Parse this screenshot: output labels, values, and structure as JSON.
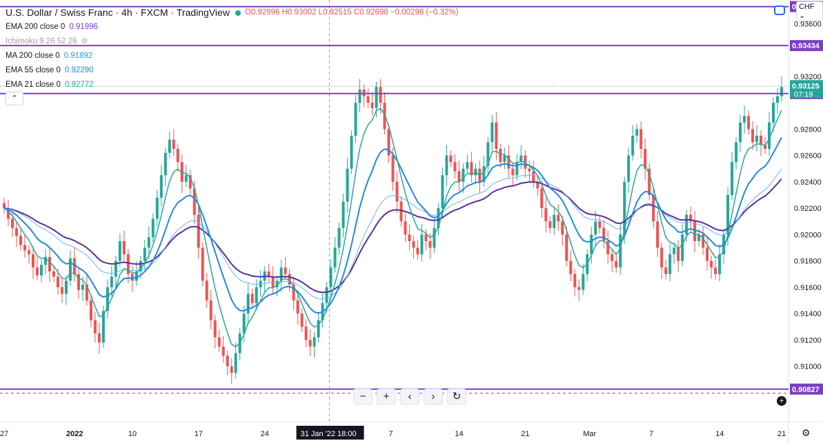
{
  "header": {
    "title": "U.S. Dollar / Swiss Franc · 4h · FXCM · TradingView",
    "ohlc": "O0.92996 H0.93002 L0.92515 C0.92698 −0.00298 (−0.32%)"
  },
  "indicators": [
    {
      "label": "EMA 200 close 0",
      "value": "0.91996",
      "color": "#7b3fc4"
    },
    {
      "label": "Ichimoku 9 26 52 26",
      "value": "",
      "color": "#9aa0ab"
    },
    {
      "label": "MA 200 close 0",
      "value": "0.91892",
      "color": "#2196f3"
    },
    {
      "label": "EMA 55 close 0",
      "value": "0.92290",
      "color": "#1e88e5"
    },
    {
      "label": "EMA 21 close 0",
      "value": "0.92772",
      "color": "#26a69a"
    }
  ],
  "currency": "CHF",
  "toolbar": {
    "zoom_out": "−",
    "zoom_in": "+",
    "scroll_left": "‹",
    "scroll_right": "›",
    "reset": "↻"
  },
  "crosshair_label": "31 Jan '22   18:00",
  "chart_data": {
    "type": "candlestick",
    "title": "U.S. Dollar / Swiss Franc · 4h · FXCM · TradingView",
    "ylim": [
      0.9058,
      0.9378
    ],
    "y_ticks": [
      "0.93600",
      "0.93200",
      "0.92800",
      "0.92600",
      "0.92400",
      "0.92200",
      "0.92000",
      "0.91800",
      "0.91600",
      "0.91400",
      "0.91200",
      "0.91000"
    ],
    "x_ticks": [
      "27",
      "2022",
      "10",
      "17",
      "24",
      "31 Jan '22",
      "7",
      "14",
      "21",
      "Mar",
      "7",
      "14",
      "21"
    ],
    "horizontal_levels": [
      {
        "label": "0.93434",
        "value": 0.93434
      },
      {
        "label": "0.93070",
        "value": 0.9307
      },
      {
        "label": "0.90827",
        "value": 0.90827
      },
      {
        "label": "0.93730",
        "value": 0.9373
      }
    ],
    "last_price": {
      "label": "0.93125",
      "countdown": "07:19",
      "value": 0.93125
    },
    "colors": {
      "up": "#26a69a",
      "down": "#ef5350",
      "level": "#7b3fc4",
      "ema200": "#5b2c9c",
      "ma200": "#64b5f6",
      "ema55": "#1e88e5",
      "ema21": "#26a69a"
    },
    "close_path": [
      0.922,
      0.9212,
      0.9205,
      0.9199,
      0.9192,
      0.9188,
      0.9185,
      0.9175,
      0.9169,
      0.9177,
      0.9183,
      0.9172,
      0.9168,
      0.916,
      0.9155,
      0.9165,
      0.9182,
      0.917,
      0.9158,
      0.9162,
      0.915,
      0.9135,
      0.9125,
      0.9118,
      0.9142,
      0.916,
      0.9168,
      0.918,
      0.9195,
      0.9185,
      0.917,
      0.9165,
      0.9172,
      0.918,
      0.919,
      0.9198,
      0.9212,
      0.9228,
      0.9245,
      0.9262,
      0.9272,
      0.9265,
      0.9255,
      0.924,
      0.9245,
      0.9235,
      0.9215,
      0.919,
      0.9165,
      0.915,
      0.9135,
      0.9122,
      0.9115,
      0.9108,
      0.91,
      0.9095,
      0.911,
      0.9125,
      0.914,
      0.9155,
      0.9148,
      0.916,
      0.9165,
      0.9172,
      0.9168,
      0.916,
      0.9165,
      0.9175,
      0.917,
      0.9162,
      0.915,
      0.914,
      0.913,
      0.912,
      0.9115,
      0.9122,
      0.9135,
      0.9148,
      0.916,
      0.9175,
      0.919,
      0.9205,
      0.9225,
      0.925,
      0.9275,
      0.93,
      0.931,
      0.9305,
      0.93,
      0.9296,
      0.9312,
      0.93,
      0.928,
      0.926,
      0.924,
      0.9225,
      0.921,
      0.92,
      0.9195,
      0.919,
      0.9185,
      0.92,
      0.9195,
      0.919,
      0.9205,
      0.922,
      0.9245,
      0.926,
      0.9255,
      0.9248,
      0.924,
      0.925,
      0.9255,
      0.9245,
      0.925,
      0.924,
      0.9252,
      0.927,
      0.9285,
      0.9265,
      0.9255,
      0.926,
      0.925,
      0.9245,
      0.9255,
      0.926,
      0.925,
      0.9248,
      0.924,
      0.9235,
      0.922,
      0.921,
      0.9205,
      0.9215,
      0.921,
      0.92,
      0.918,
      0.917,
      0.916,
      0.9158,
      0.917,
      0.9185,
      0.92,
      0.921,
      0.9205,
      0.9195,
      0.9185,
      0.918,
      0.9175,
      0.92,
      0.924,
      0.926,
      0.9275,
      0.928,
      0.9265,
      0.925,
      0.923,
      0.921,
      0.919,
      0.9175,
      0.917,
      0.9185,
      0.919,
      0.918,
      0.92,
      0.9215,
      0.921,
      0.9195,
      0.92,
      0.919,
      0.918,
      0.9175,
      0.917,
      0.9185,
      0.92,
      0.923,
      0.9255,
      0.927,
      0.9285,
      0.929,
      0.928,
      0.927,
      0.9275,
      0.9268,
      0.9265,
      0.9285,
      0.93,
      0.9305,
      0.9312
    ]
  }
}
